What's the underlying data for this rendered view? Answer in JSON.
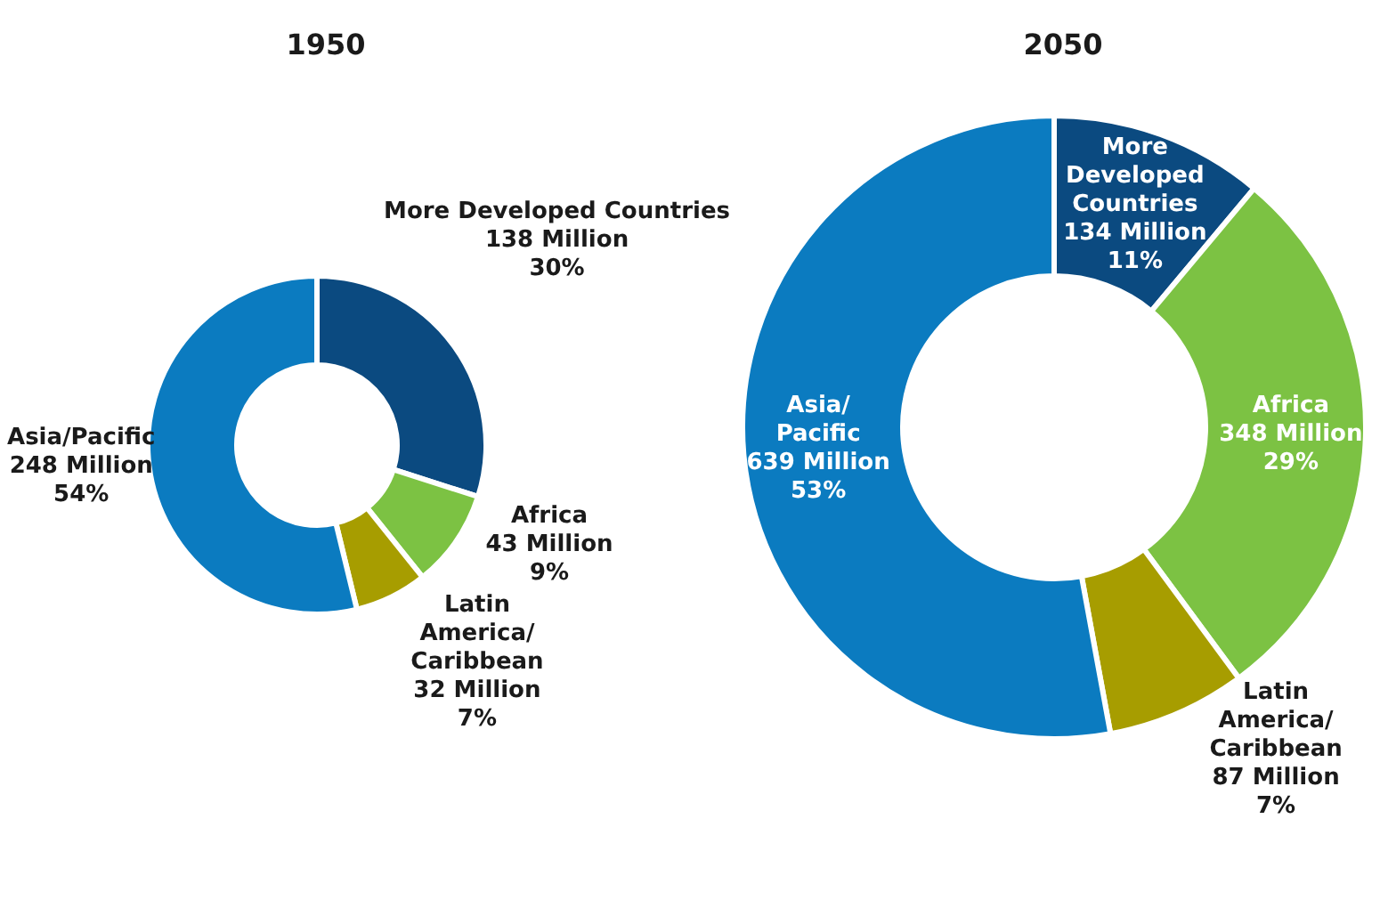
{
  "chart_data": [
    {
      "type": "donut",
      "title": "1950",
      "categories": [
        "More Developed Countries",
        "Africa",
        "Latin\nAmerica/\nCaribbean",
        "Asia/Pacific"
      ],
      "values": [
        138,
        43,
        32,
        248
      ],
      "colors": [
        "#0b4a80",
        "#7cc243",
        "#a79d00",
        "#0b7bc0"
      ],
      "value_labels": [
        "138 Million\n30%",
        "43 Million\n9%",
        "32 Million\n7%",
        "248 Million\n54%"
      ]
    },
    {
      "type": "donut",
      "title": "2050",
      "categories": [
        "More\nDeveloped\nCountries",
        "Africa",
        "Latin\nAmerica/\nCaribbean",
        "Asia/\nPacific"
      ],
      "values": [
        134,
        348,
        87,
        639
      ],
      "colors": [
        "#0b4a80",
        "#7cc243",
        "#a79d00",
        "#0b7bc0"
      ],
      "value_labels": [
        "134 Million\n11%",
        "348 Million\n29%",
        "87 Million\n7%",
        "639 Million\n53%"
      ]
    }
  ]
}
